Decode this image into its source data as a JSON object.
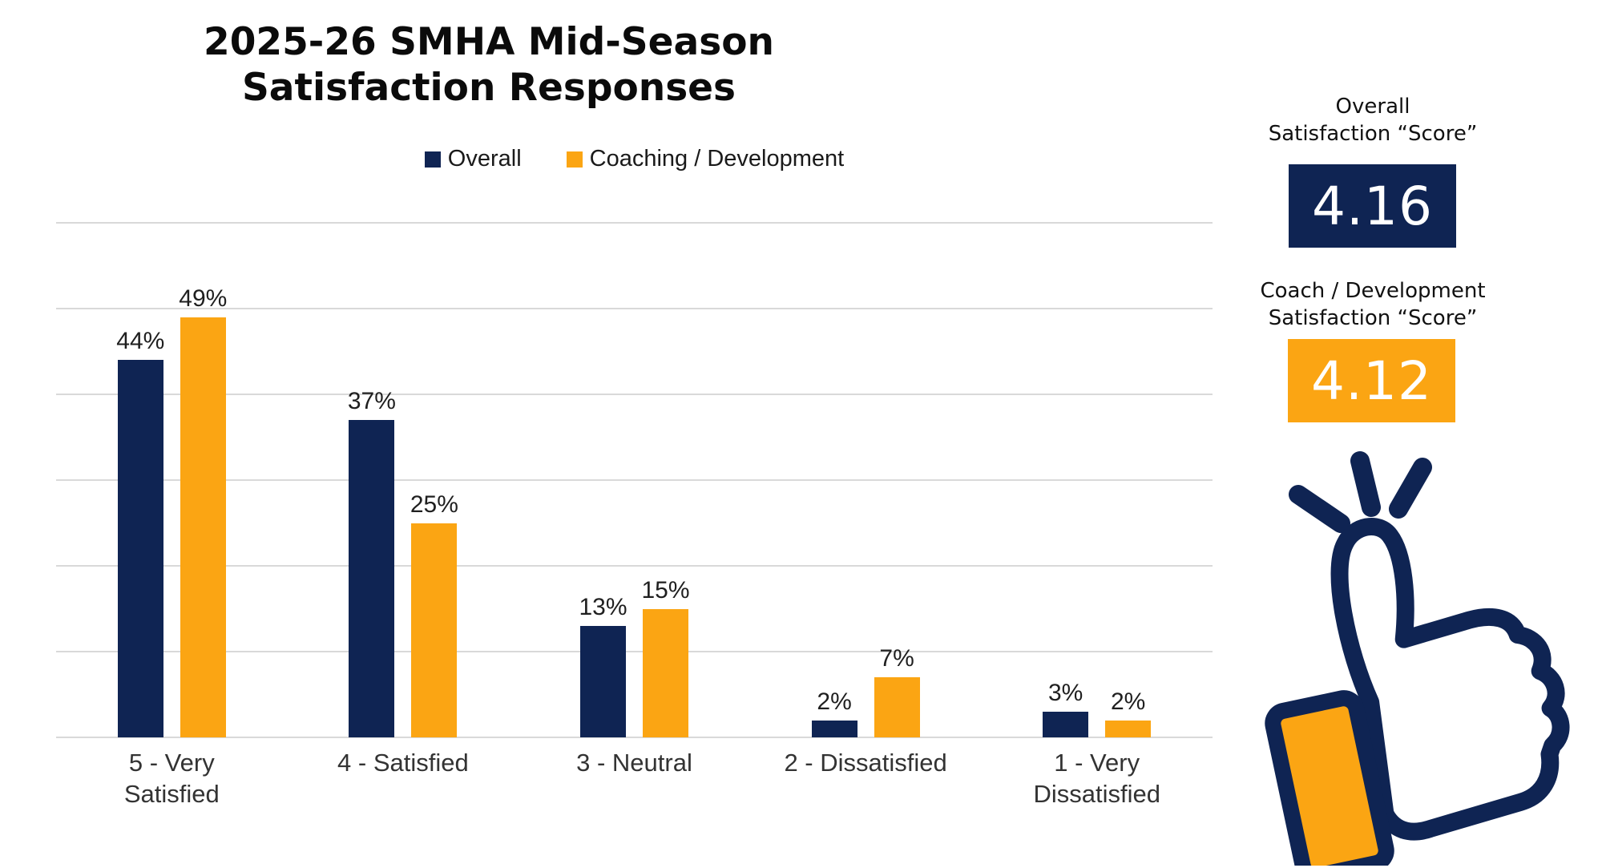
{
  "title": "2025-26 SMHA Mid-Season\nSatisfaction Responses",
  "colors": {
    "navy": "#0f2453",
    "orange": "#fba513",
    "gridline": "#d9d9d9"
  },
  "chart_data": {
    "type": "bar",
    "title": "2025-26 SMHA Mid-Season Satisfaction Responses",
    "categories": [
      "5 - Very Satisfied",
      "4 - Satisfied",
      "3 - Neutral",
      "2 - Dissatisfied",
      "1 - Very Dissatisfied"
    ],
    "category_label_lines": [
      [
        "5 - Very",
        "Satisfied"
      ],
      [
        "4 - Satisfied"
      ],
      [
        "3 - Neutral"
      ],
      [
        "2 - Dissatisfied"
      ],
      [
        "1 - Very",
        "Dissatisfied"
      ]
    ],
    "series": [
      {
        "name": "Overall",
        "color": "#0f2453",
        "values": [
          44,
          37,
          13,
          2,
          3
        ]
      },
      {
        "name": "Coaching / Development",
        "color": "#fba513",
        "values": [
          49,
          25,
          15,
          7,
          2
        ]
      }
    ],
    "value_suffix": "%",
    "xlabel": "",
    "ylabel": "",
    "ylim": [
      0,
      60
    ],
    "gridline_step": 10,
    "grid": true,
    "legend_position": "top"
  },
  "legend": [
    {
      "label": "Overall",
      "color": "#0f2453"
    },
    {
      "label": "Coaching / Development",
      "color": "#fba513"
    }
  ],
  "scores": {
    "overall": {
      "label": "Overall\nSatisfaction “Score”",
      "value": "4.16",
      "color": "#0f2453"
    },
    "coaching": {
      "label": "Coach / Development\nSatisfaction “Score”",
      "value": "4.12",
      "color": "#fba513"
    }
  },
  "icons": {
    "thumbs_up": "thumbs-up"
  }
}
